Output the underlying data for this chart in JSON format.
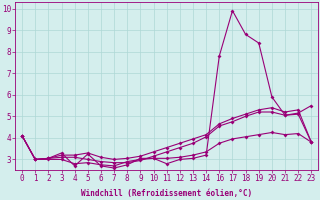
{
  "xlabel": "Windchill (Refroidissement éolien,°C)",
  "ylabel": "",
  "background_color": "#d4eeed",
  "grid_color": "#aed8d5",
  "line_color": "#990077",
  "x_ticks": [
    0,
    1,
    2,
    3,
    4,
    5,
    6,
    7,
    8,
    9,
    10,
    11,
    12,
    13,
    14,
    16,
    17,
    18,
    19,
    20,
    21,
    22,
    23
  ],
  "xlim": [
    0,
    23
  ],
  "ylim": [
    2.5,
    10.3
  ],
  "y_ticks": [
    3,
    4,
    5,
    6,
    7,
    8,
    9,
    10
  ],
  "line1_x": [
    0,
    1,
    2,
    3,
    4,
    5,
    6,
    7,
    8,
    9,
    10,
    11,
    12,
    13,
    14,
    16,
    17,
    18,
    19,
    20,
    21,
    22,
    23
  ],
  "line1_y": [
    4.1,
    3.0,
    3.05,
    3.3,
    2.7,
    3.25,
    2.7,
    2.6,
    2.75,
    3.05,
    3.05,
    2.8,
    3.0,
    3.05,
    3.2,
    7.8,
    9.9,
    8.8,
    8.4,
    5.9,
    5.05,
    5.15,
    5.5
  ],
  "line2_x": [
    0,
    1,
    2,
    3,
    4,
    5,
    6,
    7,
    8,
    9,
    10,
    11,
    12,
    13,
    14,
    16,
    17,
    18,
    19,
    20,
    21,
    22,
    23
  ],
  "line2_y": [
    4.1,
    3.0,
    3.05,
    3.1,
    3.1,
    3.0,
    2.9,
    2.85,
    2.85,
    2.95,
    3.15,
    3.35,
    3.55,
    3.75,
    4.05,
    4.55,
    4.75,
    5.0,
    5.2,
    5.2,
    5.05,
    5.1,
    3.8
  ],
  "line3_x": [
    0,
    1,
    2,
    3,
    4,
    5,
    6,
    7,
    8,
    9,
    10,
    11,
    12,
    13,
    14,
    16,
    17,
    18,
    19,
    20,
    21,
    22,
    23
  ],
  "line3_y": [
    4.1,
    3.0,
    3.05,
    3.2,
    3.2,
    3.3,
    3.1,
    3.0,
    3.05,
    3.15,
    3.35,
    3.55,
    3.75,
    3.95,
    4.15,
    4.65,
    4.9,
    5.1,
    5.3,
    5.4,
    5.2,
    5.3,
    3.8
  ],
  "line4_x": [
    0,
    1,
    2,
    3,
    4,
    5,
    6,
    7,
    8,
    9,
    10,
    11,
    12,
    13,
    14,
    16,
    17,
    18,
    19,
    20,
    21,
    22,
    23
  ],
  "line4_y": [
    4.1,
    3.0,
    3.0,
    3.0,
    2.8,
    2.85,
    2.75,
    2.7,
    2.9,
    3.0,
    3.05,
    3.05,
    3.1,
    3.2,
    3.35,
    3.75,
    3.95,
    4.05,
    4.15,
    4.25,
    4.15,
    4.2,
    3.8
  ],
  "marker_size": 2,
  "line_width": 0.8,
  "tick_fontsize": 5.5,
  "label_fontsize": 5.5
}
